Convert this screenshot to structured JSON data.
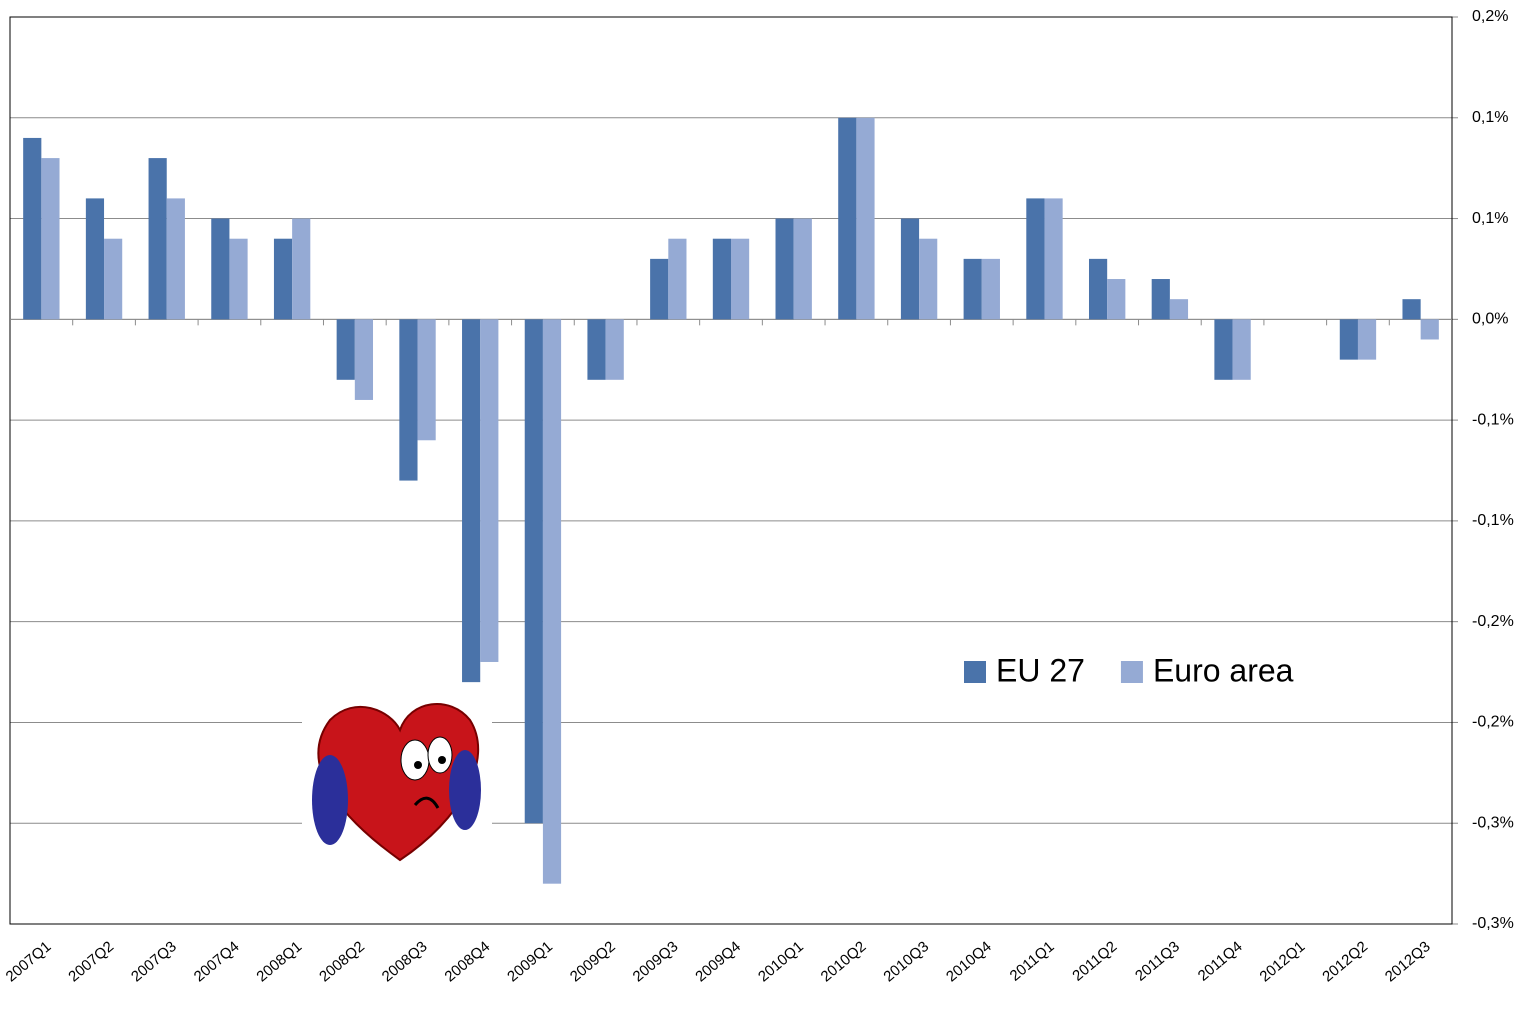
{
  "chart_data": {
    "type": "bar",
    "categories": [
      "2007Q1",
      "2007Q2",
      "2007Q3",
      "2007Q4",
      "2008Q1",
      "2008Q2",
      "2008Q3",
      "2008Q4",
      "2009Q1",
      "2009Q2",
      "2009Q3",
      "2009Q4",
      "2010Q1",
      "2010Q2",
      "2010Q3",
      "2010Q4",
      "2011Q1",
      "2011Q2",
      "2011Q3",
      "2011Q4",
      "2012Q1",
      "2012Q2",
      "2012Q3"
    ],
    "series": [
      {
        "name": "EU 27",
        "color": "#4a73aa",
        "values": [
          0.09,
          0.06,
          0.08,
          0.05,
          0.04,
          -0.03,
          -0.08,
          -0.18,
          -0.25,
          -0.03,
          0.03,
          0.04,
          0.05,
          0.1,
          0.05,
          0.03,
          0.06,
          0.03,
          0.02,
          -0.03,
          0,
          -0.02,
          0.01
        ]
      },
      {
        "name": "Euro area",
        "color": "#95aad4",
        "values": [
          0.08,
          0.04,
          0.06,
          0.04,
          0.05,
          -0.04,
          -0.06,
          -0.17,
          -0.28,
          -0.03,
          0.04,
          0.04,
          0.05,
          0.1,
          0.04,
          0.03,
          0.06,
          0.02,
          0.01,
          -0.03,
          0,
          -0.02,
          -0.01
        ]
      }
    ],
    "ylim": [
      -0.3,
      0.15
    ],
    "yticks": [
      {
        "value": 0.15,
        "label": "0,2%"
      },
      {
        "value": 0.1,
        "label": "0,1%"
      },
      {
        "value": 0.05,
        "label": "0,1%"
      },
      {
        "value": 0,
        "label": "0,0%"
      },
      {
        "value": -0.05,
        "label": "-0,1%"
      },
      {
        "value": -0.1,
        "label": "-0,1%"
      },
      {
        "value": -0.15,
        "label": "-0,2%"
      },
      {
        "value": -0.2,
        "label": "-0,2%"
      },
      {
        "value": -0.25,
        "label": "-0,3%"
      },
      {
        "value": -0.3,
        "label": "-0,3%"
      }
    ],
    "grid": true,
    "legend": "center-right",
    "y_axis_side": "right"
  }
}
